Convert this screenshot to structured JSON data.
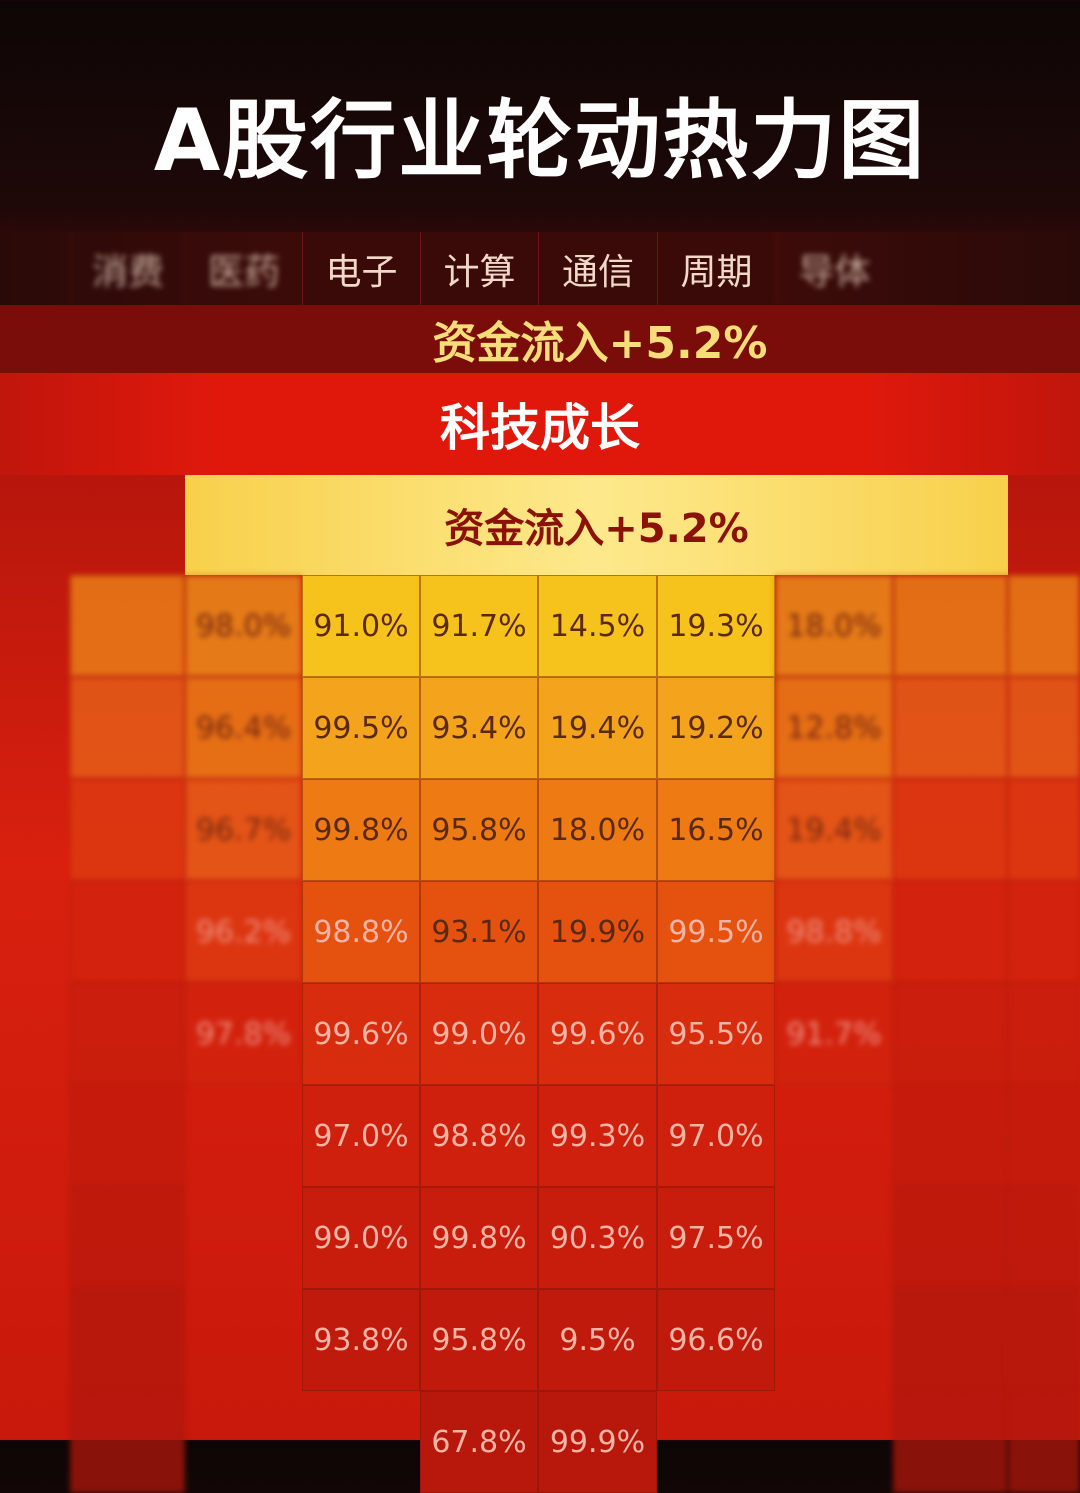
{
  "header": {
    "title": "A股行业轮动热力图"
  },
  "columns": [
    "消费",
    "医药",
    "电子",
    "计算",
    "通信",
    "周期",
    "导体"
  ],
  "banner_top": "资金流入+5.2%",
  "banner_sector": "科技成长",
  "banner_inner": "资金流入+5.2%",
  "table": {
    "columns": [
      {
        "cells": [
          "98.0%",
          "96.4%",
          "96.7%",
          "96.2%",
          "97.8%"
        ]
      },
      {
        "cells": [
          "91.0%",
          "99.5%",
          "99.8%",
          "98.8%",
          "99.6%",
          "97.0%",
          "99.0%",
          "93.8%"
        ]
      },
      {
        "cells": [
          "91.7%",
          "93.4%",
          "95.8%",
          "93.1%",
          "99.0%",
          "98.8%",
          "99.8%",
          "95.8%",
          "67.8%"
        ]
      },
      {
        "cells": [
          "14.5%",
          "19.4%",
          "18.0%",
          "19.9%",
          "99.6%",
          "99.3%",
          "90.3%",
          "9.5%",
          "99.9%"
        ]
      },
      {
        "cells": [
          "19.3%",
          "19.2%",
          "16.5%",
          "99.5%",
          "95.5%",
          "97.0%",
          "97.5%",
          "96.6%"
        ]
      },
      {
        "cells": [
          "18.0%",
          "12.8%",
          "19.4%",
          "98.8%",
          "91.7%"
        ]
      }
    ]
  }
}
